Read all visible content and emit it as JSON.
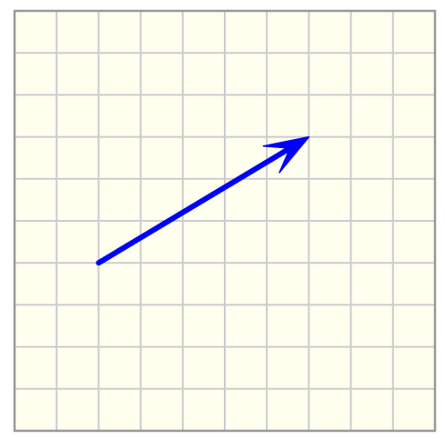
{
  "grid": {
    "columns": 10,
    "rows": 10,
    "background_color": "#fffff0",
    "line_color": "#cccccc",
    "border_color": "#999999"
  },
  "vector": {
    "color": "#0000ff",
    "tail": {
      "col": 2,
      "row": 6
    },
    "head": {
      "col": 7,
      "row": 3
    }
  }
}
